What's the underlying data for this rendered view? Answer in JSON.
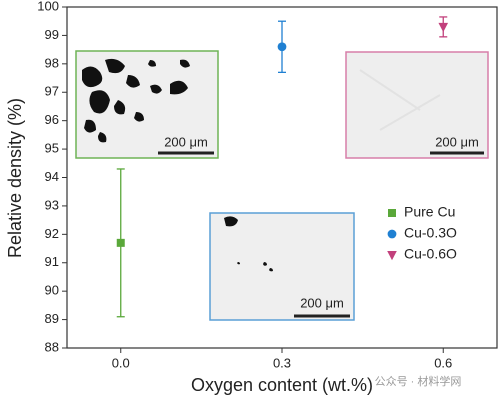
{
  "chart_data": {
    "type": "scatter",
    "xlabel": "Oxygen content (wt.%)",
    "ylabel": "Relative density (%)",
    "xlim": [
      -0.1,
      0.7
    ],
    "ylim": [
      88,
      100
    ],
    "xticks": [
      {
        "value": 0,
        "label": "0.0"
      },
      0.3,
      0.6
    ],
    "yticks": [
      88,
      89,
      90,
      91,
      92,
      93,
      94,
      95,
      96,
      97,
      98,
      99,
      100
    ],
    "series": [
      {
        "name": "Pure Cu",
        "color": "#5aa83a",
        "marker": "square",
        "x": [
          0
        ],
        "values": [
          91.7
        ],
        "errors": [
          2.6
        ]
      },
      {
        "name": "Cu-0.3O",
        "color": "#1f80d2",
        "marker": "circle",
        "x": [
          0.3
        ],
        "values": [
          98.6
        ],
        "errors": [
          0.9
        ]
      },
      {
        "name": "Cu-0.6O",
        "color": "#c2407c",
        "marker": "triangle-down",
        "x": [
          0.6
        ],
        "values": [
          99.3
        ],
        "errors": [
          0.35
        ]
      }
    ],
    "inset_labels": [
      "200 μm",
      "200 μm",
      "200 μm"
    ],
    "watermark": "公众号 · 材料学网"
  }
}
